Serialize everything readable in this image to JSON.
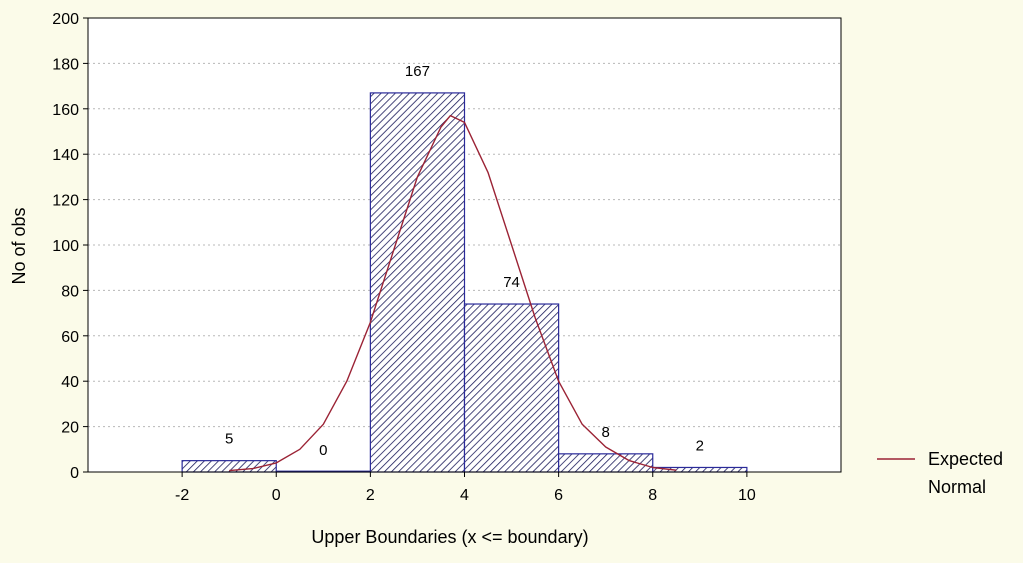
{
  "chart_data": {
    "type": "bar",
    "title": "",
    "xlabel": "Upper Boundaries (x <= boundary)",
    "ylabel": "No of obs",
    "x_ticks": [
      "-2",
      "0",
      "2",
      "4",
      "6",
      "8",
      "10"
    ],
    "y_ticks": [
      "0",
      "20",
      "40",
      "60",
      "80",
      "100",
      "120",
      "140",
      "160",
      "180",
      "200"
    ],
    "xlim": [
      -4,
      12
    ],
    "ylim": [
      0,
      200
    ],
    "bins": [
      {
        "from": -2,
        "to": 0,
        "value": 5,
        "label": "5"
      },
      {
        "from": 0,
        "to": 2,
        "value": 0,
        "label": "0"
      },
      {
        "from": 2,
        "to": 4,
        "value": 167,
        "label": "167"
      },
      {
        "from": 4,
        "to": 6,
        "value": 74,
        "label": "74"
      },
      {
        "from": 6,
        "to": 8,
        "value": 8,
        "label": "8"
      },
      {
        "from": 8,
        "to": 10,
        "value": 2,
        "label": "2"
      }
    ],
    "curve": {
      "name_lines": [
        "Expected",
        "Normal"
      ],
      "color": "#9b2335",
      "x": [
        -1,
        -0.5,
        0,
        0.5,
        1,
        1.5,
        2,
        2.5,
        3,
        3.5,
        3.7,
        4,
        4.5,
        5,
        5.5,
        6,
        6.5,
        7,
        7.5,
        8,
        8.5
      ],
      "y": [
        0.6,
        1.5,
        4,
        10,
        21,
        40,
        66,
        98,
        130,
        152,
        157,
        154,
        132,
        100,
        68,
        40,
        21,
        11,
        5,
        2,
        0.8
      ]
    },
    "grid": true,
    "grid_axis": "y",
    "legend_position": "right",
    "bar_edge_color": "#2a2a9a",
    "bar_hatch_color": "#1a1a5a",
    "background_color": "#fbfbe9",
    "plot_background_color": "#ffffff"
  }
}
